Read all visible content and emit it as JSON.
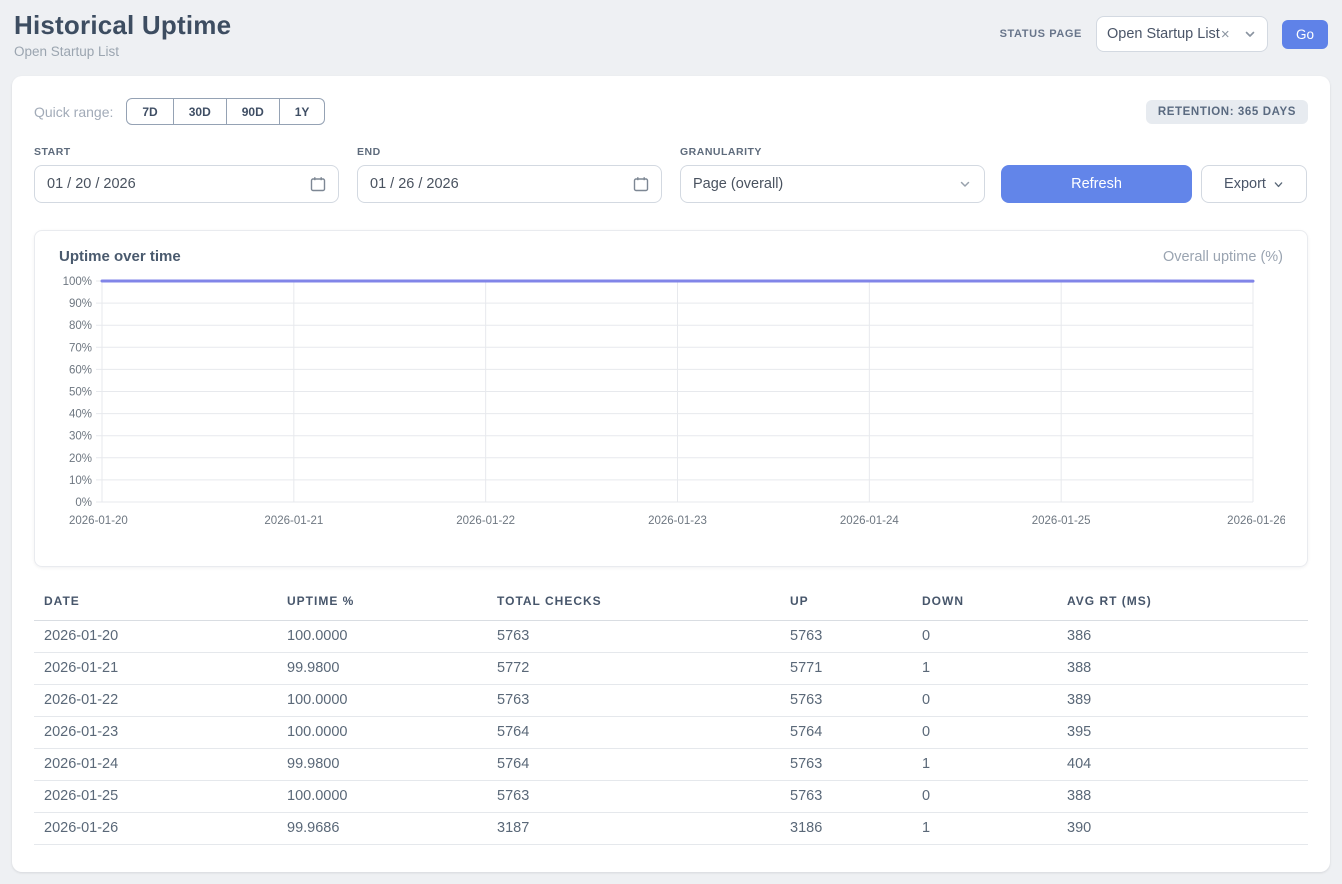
{
  "page": {
    "title": "Historical Uptime",
    "subtitle": "Open Startup List"
  },
  "header": {
    "status_page_label": "STATUS PAGE",
    "status_page_select": {
      "value": "Open Startup List",
      "clear_icon": "×"
    },
    "go_button": "Go"
  },
  "controls": {
    "quick_range_label": "Quick range:",
    "quick_ranges": [
      "7D",
      "30D",
      "90D",
      "1Y"
    ],
    "retention_badge": "RETENTION: 365 DAYS",
    "start": {
      "label": "START",
      "value": "01 / 20 / 2026"
    },
    "end": {
      "label": "END",
      "value": "01 / 26 / 2026"
    },
    "granularity": {
      "label": "GRANULARITY",
      "value": "Page (overall)"
    },
    "refresh_button": "Refresh",
    "export_button": "Export"
  },
  "chart": {
    "title": "Uptime over time",
    "legend": "Overall uptime (%)"
  },
  "chart_data": {
    "type": "line",
    "title": "Uptime over time",
    "legend_entries": [
      "Overall uptime (%)"
    ],
    "x": [
      "2026-01-20",
      "2026-01-21",
      "2026-01-22",
      "2026-01-23",
      "2026-01-24",
      "2026-01-25",
      "2026-01-26"
    ],
    "series": [
      {
        "name": "Overall uptime (%)",
        "values": [
          100.0,
          99.98,
          100.0,
          100.0,
          99.98,
          100.0,
          99.9686
        ]
      }
    ],
    "ylim": [
      0,
      100
    ],
    "yticks": [
      "100%",
      "90%",
      "80%",
      "70%",
      "60%",
      "50%",
      "40%",
      "30%",
      "20%",
      "10%",
      "0%"
    ],
    "grid": true,
    "legend_position": "top-right",
    "line_color": "#8185e8",
    "grid_color": "#e7e9ed"
  },
  "table": {
    "columns": [
      "DATE",
      "UPTIME %",
      "TOTAL CHECKS",
      "UP",
      "DOWN",
      "AVG RT (MS)"
    ],
    "rows": [
      [
        "2026-01-20",
        "100.0000",
        "5763",
        "5763",
        "0",
        "386"
      ],
      [
        "2026-01-21",
        "99.9800",
        "5772",
        "5771",
        "1",
        "388"
      ],
      [
        "2026-01-22",
        "100.0000",
        "5763",
        "5763",
        "0",
        "389"
      ],
      [
        "2026-01-23",
        "100.0000",
        "5764",
        "5764",
        "0",
        "395"
      ],
      [
        "2026-01-24",
        "99.9800",
        "5764",
        "5763",
        "1",
        "404"
      ],
      [
        "2026-01-25",
        "100.0000",
        "5763",
        "5763",
        "0",
        "388"
      ],
      [
        "2026-01-26",
        "99.9686",
        "3187",
        "3186",
        "1",
        "390"
      ]
    ]
  },
  "colors": {
    "accent": "#5f82e8",
    "refresh_accent": "#6285e9",
    "chart_line": "#8185e8"
  }
}
